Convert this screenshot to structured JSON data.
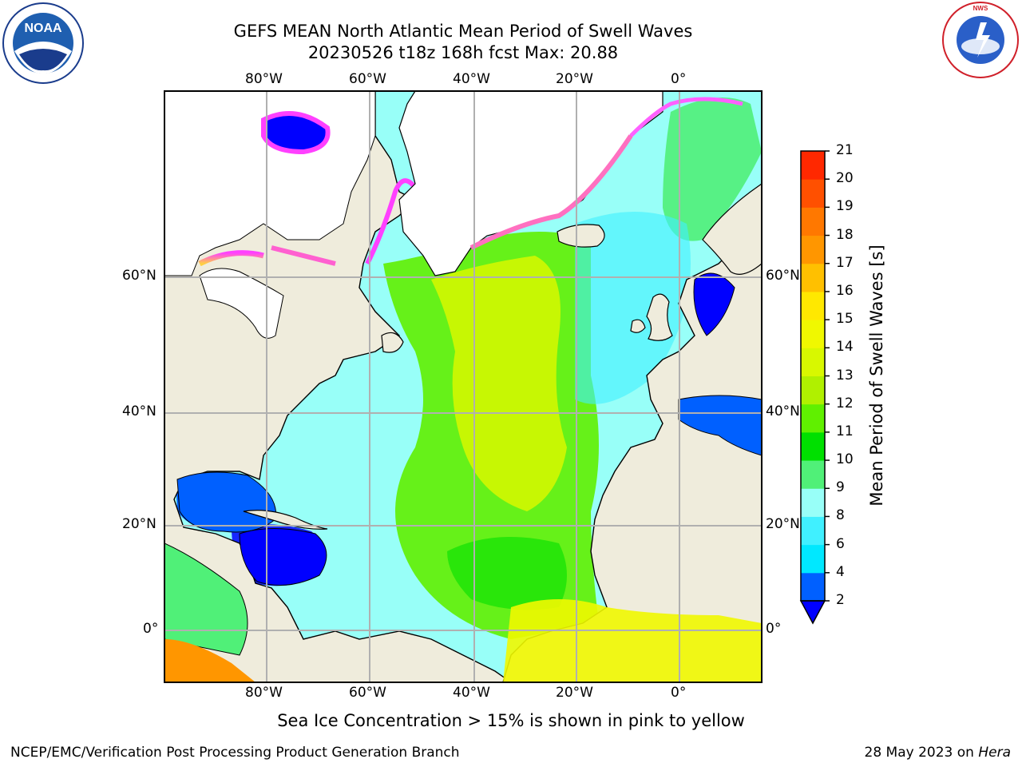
{
  "title": {
    "line1": "GEFS MEAN North Atlantic Mean Period of Swell Waves",
    "line2": "20230526 t18z 168h fcst   Max: 20.88"
  },
  "map": {
    "longitude_labels": [
      "80°W",
      "60°W",
      "40°W",
      "20°W",
      "0°"
    ],
    "latitude_labels": [
      "60°N",
      "40°N",
      "20°N",
      "0°"
    ],
    "region": "North Atlantic",
    "colors": {
      "land": "#efecdc",
      "ice_free_ocean_border": "#000000",
      "grid": "#b0b0b0"
    }
  },
  "colorbar": {
    "label": "Mean Period of Swell Waves [s]",
    "tick_labels": [
      "21",
      "20",
      "19",
      "18",
      "17",
      "16",
      "15",
      "14",
      "13",
      "12",
      "11",
      "10",
      "9",
      "8",
      "6",
      "4",
      "2"
    ],
    "levels": [
      2,
      4,
      6,
      8,
      9,
      10,
      11,
      12,
      13,
      14,
      15,
      16,
      17,
      18,
      19,
      20,
      21
    ],
    "colors": [
      "#0060ff",
      "#00e8ff",
      "#40f0ff",
      "#98fff8",
      "#50f078",
      "#00e000",
      "#60f000",
      "#b0f000",
      "#d8f800",
      "#f0f800",
      "#ffe800",
      "#ffc000",
      "#ff9600",
      "#ff7800",
      "#ff5000",
      "#ff2800",
      "#ff0000"
    ],
    "extend_color": "#0000ff"
  },
  "subtitle": "Sea Ice Concentration > 15% is shown in pink to yellow",
  "footer": {
    "left": "NCEP/EMC/Verification Post Processing Product Generation Branch",
    "right_prefix": "28 May 2023 on ",
    "right_host": "Hera"
  },
  "logos": {
    "noaa": "NOAA",
    "nws": "NATIONAL WEATHER SERVICE"
  }
}
